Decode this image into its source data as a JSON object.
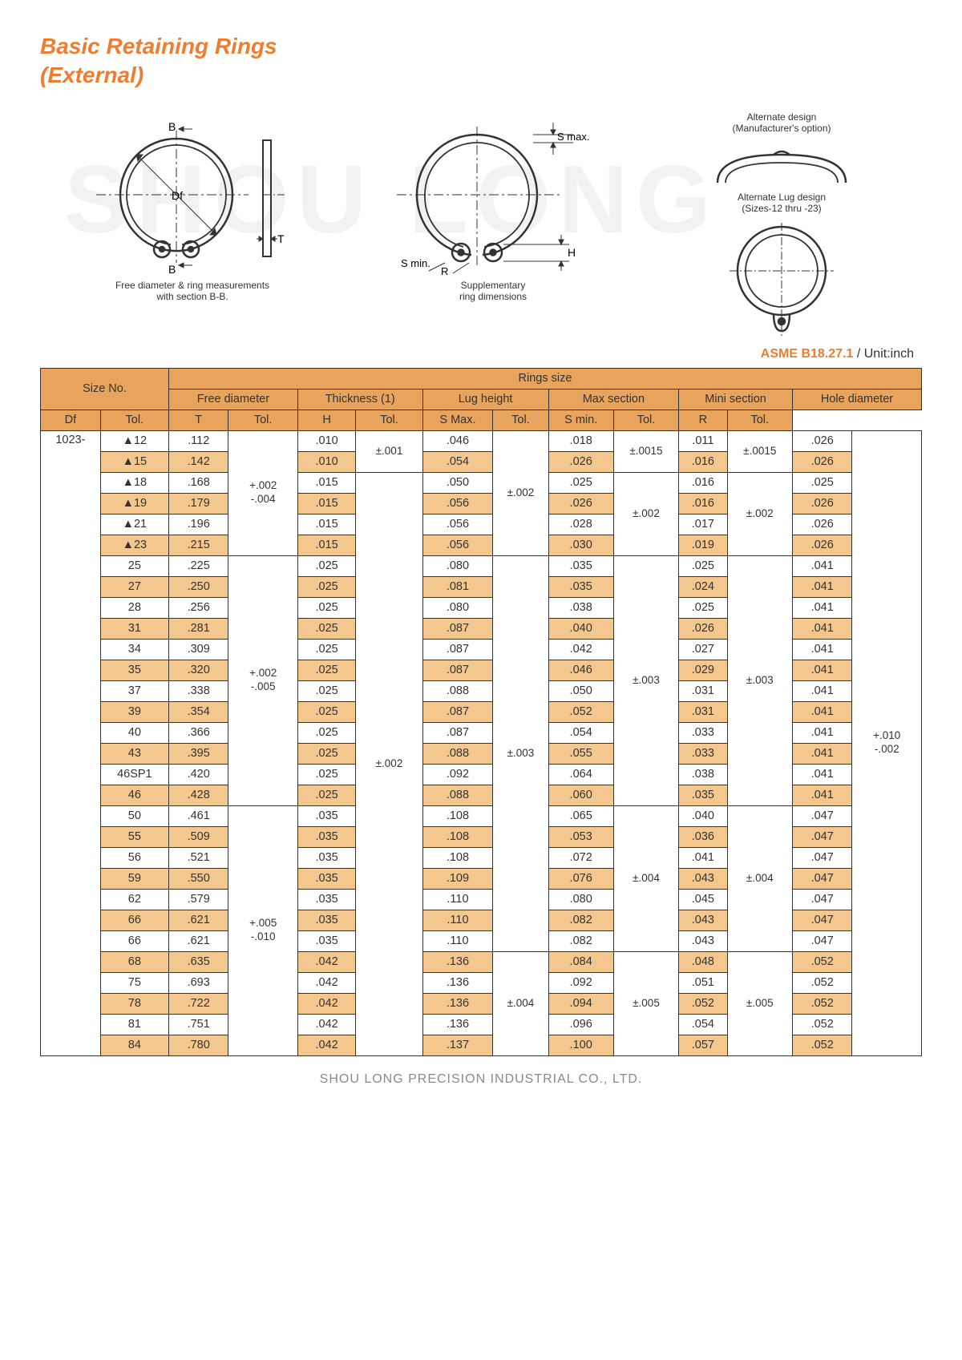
{
  "title_line1": "Basic Retaining Rings",
  "title_line2": "(External)",
  "watermark": "SHOU LONG",
  "standard": "ASME B18.27.1",
  "unit_label": " / Unit:inch",
  "footer": "SHOU LONG PRECISION INDUSTRIAL CO., LTD.",
  "diagrams": {
    "d1": {
      "labels": {
        "B_top": "B",
        "B_bot": "B",
        "Df": "Df",
        "T": "T"
      },
      "caption": "Free diameter & ring measurements\nwith section B-B."
    },
    "d2": {
      "labels": {
        "Smax": "S max.",
        "Smin": "S min.",
        "R": "R",
        "H": "H"
      },
      "caption": "Supplementary\nring dimensions"
    },
    "d3": {
      "caption_top": "Alternate design\n(Manufacturer's option)",
      "caption_alt": "Alternate Lug design\n(Sizes-12 thru -23)"
    }
  },
  "headers": {
    "size_no": "Size No.",
    "rings_size": "Rings size",
    "groups": [
      {
        "label": "Free diameter",
        "sub1": "Df",
        "sub2": "Tol."
      },
      {
        "label": "Thickness (1)",
        "sub1": "T",
        "sub2": "Tol."
      },
      {
        "label": "Lug height",
        "sub1": "H",
        "sub2": "Tol."
      },
      {
        "label": "Max section",
        "sub1": "S Max.",
        "sub2": "Tol."
      },
      {
        "label": "Mini section",
        "sub1": "S min.",
        "sub2": "Tol."
      },
      {
        "label": "Hole diameter",
        "sub1": "R",
        "sub2": "Tol."
      }
    ]
  },
  "size_prefix": "1023-",
  "rows": [
    {
      "n": "▲12",
      "alt": 0,
      "df": ".112",
      "t": ".010",
      "h": ".046",
      "smax": ".018",
      "smin": ".011",
      "r": ".026"
    },
    {
      "n": "▲15",
      "alt": 1,
      "df": ".142",
      "t": ".010",
      "h": ".054",
      "smax": ".026",
      "smin": ".016",
      "r": ".026"
    },
    {
      "n": "▲18",
      "alt": 0,
      "df": ".168",
      "t": ".015",
      "h": ".050",
      "smax": ".025",
      "smin": ".016",
      "r": ".025"
    },
    {
      "n": "▲19",
      "alt": 1,
      "df": ".179",
      "t": ".015",
      "h": ".056",
      "smax": ".026",
      "smin": ".016",
      "r": ".026"
    },
    {
      "n": "▲21",
      "alt": 0,
      "df": ".196",
      "t": ".015",
      "h": ".056",
      "smax": ".028",
      "smin": ".017",
      "r": ".026"
    },
    {
      "n": "▲23",
      "alt": 1,
      "df": ".215",
      "t": ".015",
      "h": ".056",
      "smax": ".030",
      "smin": ".019",
      "r": ".026"
    },
    {
      "n": "25",
      "alt": 0,
      "df": ".225",
      "t": ".025",
      "h": ".080",
      "smax": ".035",
      "smin": ".025",
      "r": ".041"
    },
    {
      "n": "27",
      "alt": 1,
      "df": ".250",
      "t": ".025",
      "h": ".081",
      "smax": ".035",
      "smin": ".024",
      "r": ".041"
    },
    {
      "n": "28",
      "alt": 0,
      "df": ".256",
      "t": ".025",
      "h": ".080",
      "smax": ".038",
      "smin": ".025",
      "r": ".041"
    },
    {
      "n": "31",
      "alt": 1,
      "df": ".281",
      "t": ".025",
      "h": ".087",
      "smax": ".040",
      "smin": ".026",
      "r": ".041"
    },
    {
      "n": "34",
      "alt": 0,
      "df": ".309",
      "t": ".025",
      "h": ".087",
      "smax": ".042",
      "smin": ".027",
      "r": ".041"
    },
    {
      "n": "35",
      "alt": 1,
      "df": ".320",
      "t": ".025",
      "h": ".087",
      "smax": ".046",
      "smin": ".029",
      "r": ".041"
    },
    {
      "n": "37",
      "alt": 0,
      "df": ".338",
      "t": ".025",
      "h": ".088",
      "smax": ".050",
      "smin": ".031",
      "r": ".041"
    },
    {
      "n": "39",
      "alt": 1,
      "df": ".354",
      "t": ".025",
      "h": ".087",
      "smax": ".052",
      "smin": ".031",
      "r": ".041"
    },
    {
      "n": "40",
      "alt": 0,
      "df": ".366",
      "t": ".025",
      "h": ".087",
      "smax": ".054",
      "smin": ".033",
      "r": ".041"
    },
    {
      "n": "43",
      "alt": 1,
      "df": ".395",
      "t": ".025",
      "h": ".088",
      "smax": ".055",
      "smin": ".033",
      "r": ".041"
    },
    {
      "n": "46SP1",
      "alt": 0,
      "df": ".420",
      "t": ".025",
      "h": ".092",
      "smax": ".064",
      "smin": ".038",
      "r": ".041"
    },
    {
      "n": "46",
      "alt": 1,
      "df": ".428",
      "t": ".025",
      "h": ".088",
      "smax": ".060",
      "smin": ".035",
      "r": ".041"
    },
    {
      "n": "50",
      "alt": 0,
      "df": ".461",
      "t": ".035",
      "h": ".108",
      "smax": ".065",
      "smin": ".040",
      "r": ".047"
    },
    {
      "n": "55",
      "alt": 1,
      "df": ".509",
      "t": ".035",
      "h": ".108",
      "smax": ".053",
      "smin": ".036",
      "r": ".047"
    },
    {
      "n": "56",
      "alt": 0,
      "df": ".521",
      "t": ".035",
      "h": ".108",
      "smax": ".072",
      "smin": ".041",
      "r": ".047"
    },
    {
      "n": "59",
      "alt": 1,
      "df": ".550",
      "t": ".035",
      "h": ".109",
      "smax": ".076",
      "smin": ".043",
      "r": ".047"
    },
    {
      "n": "62",
      "alt": 0,
      "df": ".579",
      "t": ".035",
      "h": ".110",
      "smax": ".080",
      "smin": ".045",
      "r": ".047"
    },
    {
      "n": "66",
      "alt": 1,
      "df": ".621",
      "t": ".035",
      "h": ".110",
      "smax": ".082",
      "smin": ".043",
      "r": ".047"
    },
    {
      "n": "66",
      "alt": 0,
      "df": ".621",
      "t": ".035",
      "h": ".110",
      "smax": ".082",
      "smin": ".043",
      "r": ".047"
    },
    {
      "n": "68",
      "alt": 1,
      "df": ".635",
      "t": ".042",
      "h": ".136",
      "smax": ".084",
      "smin": ".048",
      "r": ".052"
    },
    {
      "n": "75",
      "alt": 0,
      "df": ".693",
      "t": ".042",
      "h": ".136",
      "smax": ".092",
      "smin": ".051",
      "r": ".052"
    },
    {
      "n": "78",
      "alt": 1,
      "df": ".722",
      "t": ".042",
      "h": ".136",
      "smax": ".094",
      "smin": ".052",
      "r": ".052"
    },
    {
      "n": "81",
      "alt": 0,
      "df": ".751",
      "t": ".042",
      "h": ".136",
      "smax": ".096",
      "smin": ".054",
      "r": ".052"
    },
    {
      "n": "84",
      "alt": 1,
      "df": ".780",
      "t": ".042",
      "h": ".137",
      "smax": ".100",
      "smin": ".057",
      "r": ".052"
    }
  ],
  "tol": {
    "df": [
      {
        "start": 0,
        "span": 6,
        "text": "+.002\n-.004"
      },
      {
        "start": 6,
        "span": 12,
        "text": "+.002\n-.005"
      },
      {
        "start": 18,
        "span": 12,
        "text": "+.005\n-.010"
      }
    ],
    "t": [
      {
        "start": 0,
        "span": 2,
        "text": "±.001"
      },
      {
        "start": 2,
        "span": 28,
        "text": "±.002"
      }
    ],
    "h": [
      {
        "start": 0,
        "span": 6,
        "text": "±.002"
      },
      {
        "start": 6,
        "span": 19,
        "text": "±.003"
      },
      {
        "start": 25,
        "span": 5,
        "text": "±.004"
      }
    ],
    "smax": [
      {
        "start": 0,
        "span": 2,
        "text": "±.0015"
      },
      {
        "start": 2,
        "span": 4,
        "text": "±.002"
      },
      {
        "start": 6,
        "span": 12,
        "text": "±.003"
      },
      {
        "start": 18,
        "span": 7,
        "text": "±.004"
      },
      {
        "start": 25,
        "span": 5,
        "text": "±.005"
      }
    ],
    "smin": [
      {
        "start": 0,
        "span": 2,
        "text": "±.0015"
      },
      {
        "start": 2,
        "span": 4,
        "text": "±.002"
      },
      {
        "start": 6,
        "span": 12,
        "text": "±.003"
      },
      {
        "start": 18,
        "span": 7,
        "text": "±.004"
      },
      {
        "start": 25,
        "span": 5,
        "text": "±.005"
      }
    ],
    "r": [
      {
        "start": 0,
        "span": 30,
        "text": "+.010\n-.002"
      }
    ]
  },
  "colors": {
    "accent": "#ED7D31",
    "header_fill": "#E8A35D",
    "alt_fill": "#F4C78E",
    "border": "#333333",
    "footer_text": "#8a8a8a",
    "bg": "#ffffff"
  }
}
